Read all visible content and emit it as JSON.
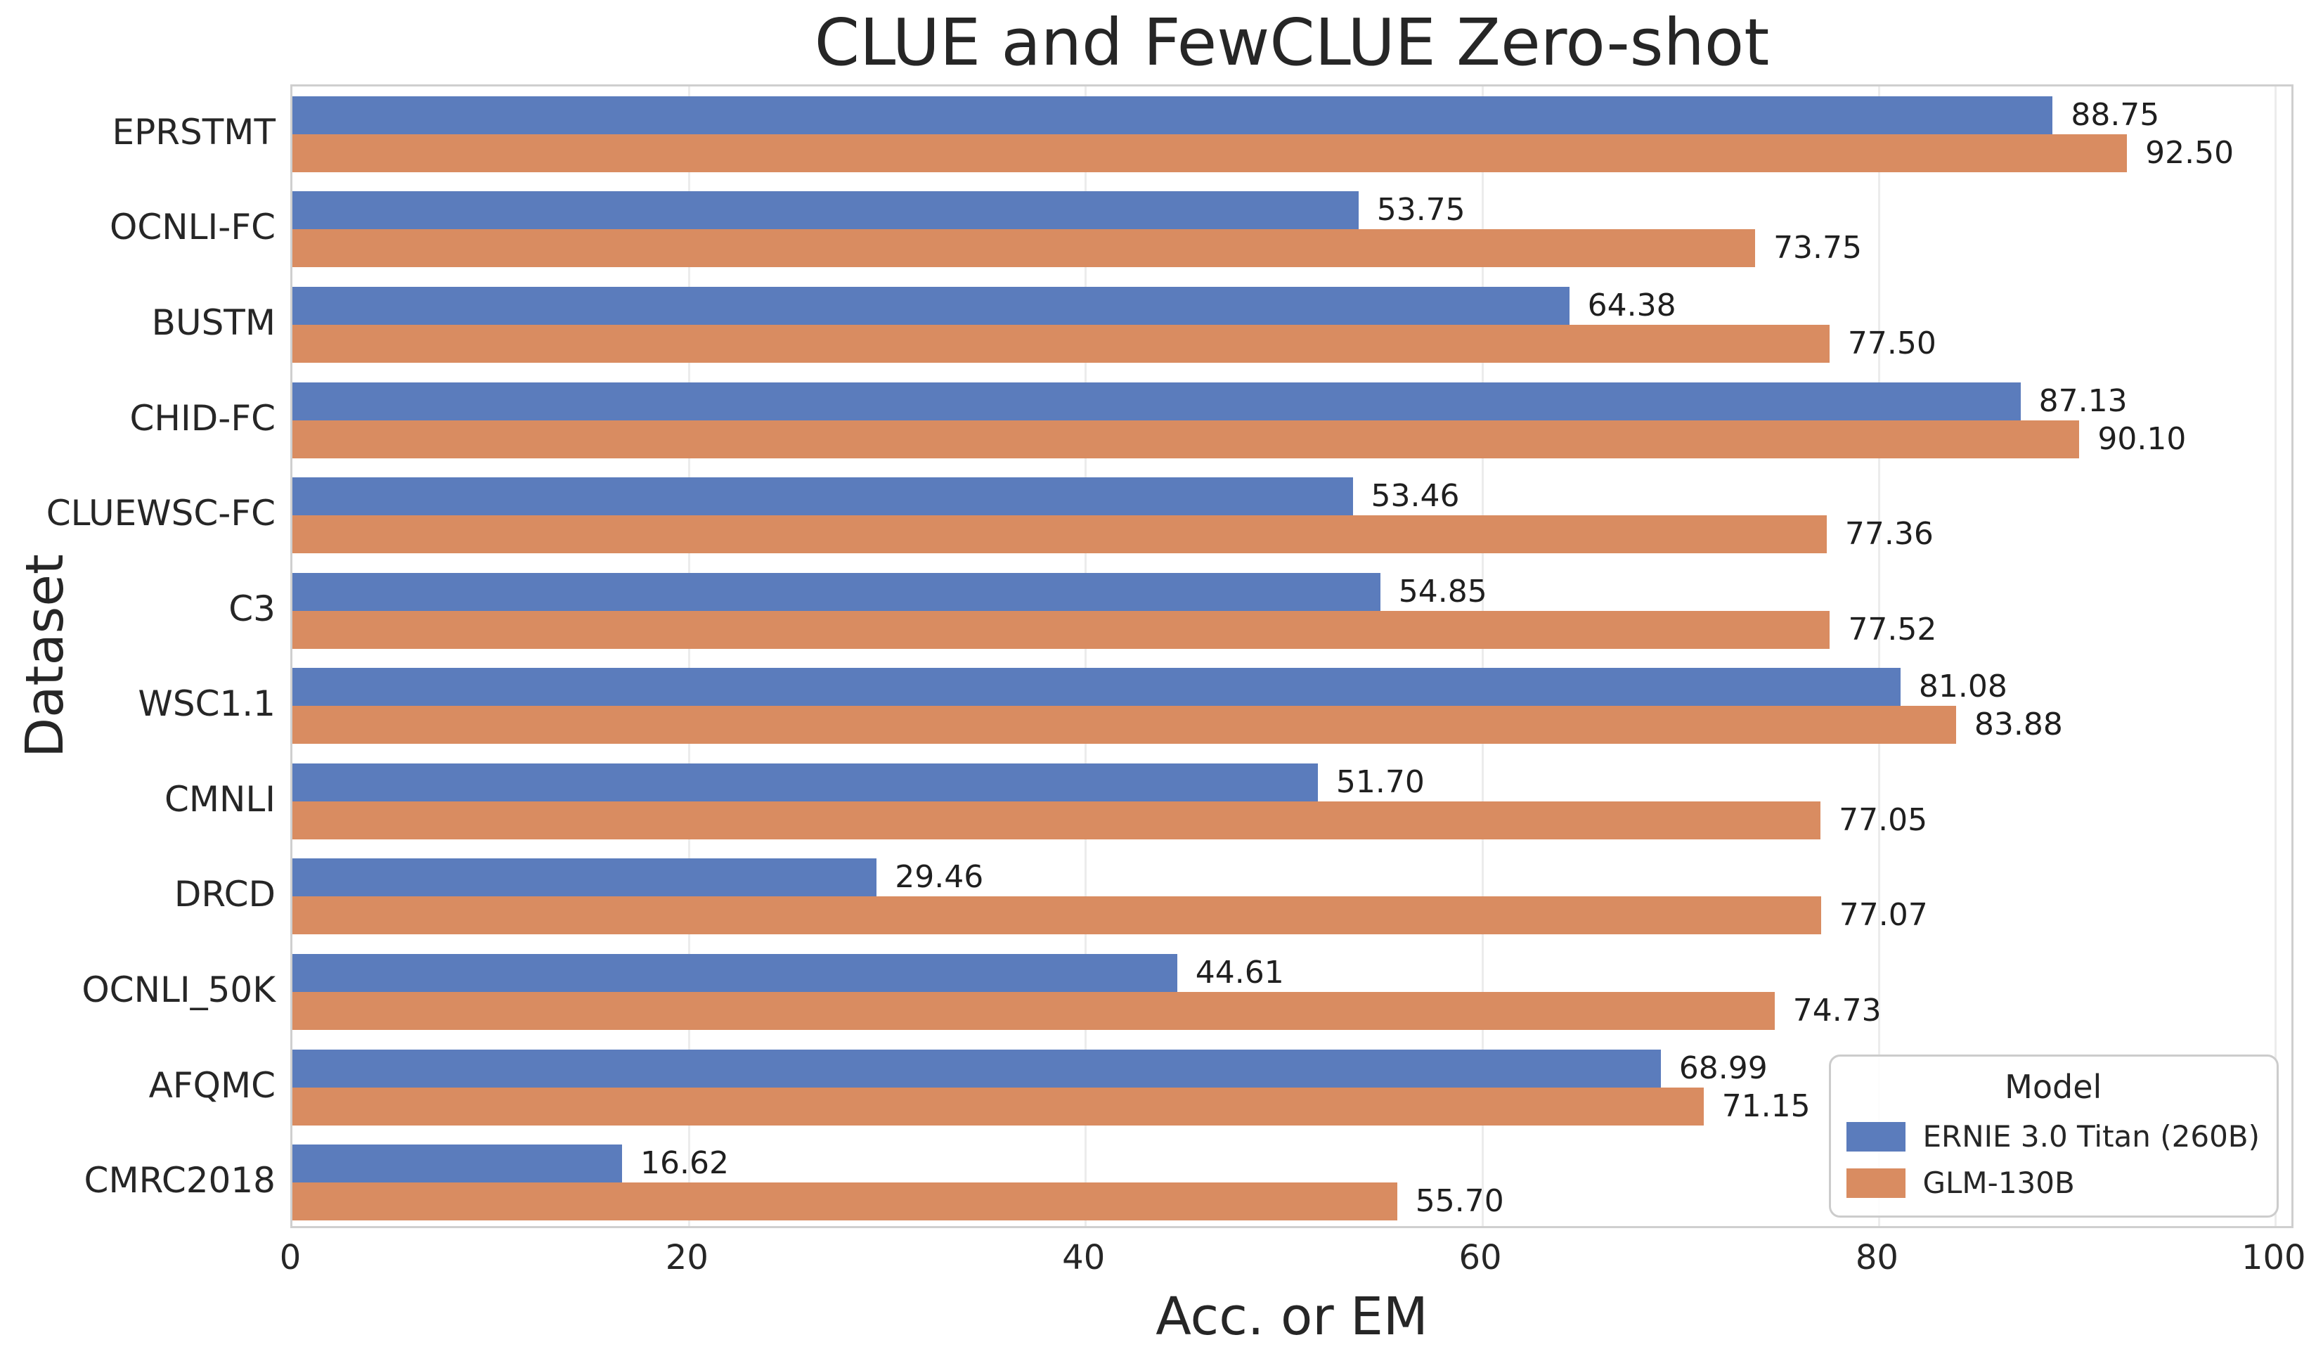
{
  "chart_data": {
    "type": "bar",
    "orientation": "horizontal",
    "title": "CLUE and FewCLUE Zero-shot",
    "xlabel": "Acc. or EM",
    "ylabel": "Dataset",
    "xlim": [
      0,
      101
    ],
    "xticks": [
      0,
      20,
      40,
      60,
      80,
      100
    ],
    "grid": "vertical-gridlines-on",
    "value_labels": "two-decimals-right-of-bar",
    "categories": [
      "EPRSTMT",
      "OCNLI-FC",
      "BUSTM",
      "CHID-FC",
      "CLUEWSC-FC",
      "C3",
      "WSC1.1",
      "CMNLI",
      "DRCD",
      "OCNLI_50K",
      "AFQMC",
      "CMRC2018"
    ],
    "series": [
      {
        "name": "ERNIE 3.0 Titan (260B)",
        "color": "#5b7cbc",
        "values": [
          88.75,
          53.75,
          64.38,
          87.13,
          53.46,
          54.85,
          81.08,
          51.7,
          29.46,
          44.61,
          68.99,
          16.62
        ]
      },
      {
        "name": "GLM-130B",
        "color": "#d98c61",
        "values": [
          92.5,
          73.75,
          77.5,
          90.1,
          77.36,
          77.52,
          83.88,
          77.05,
          77.07,
          74.73,
          71.15,
          55.7
        ]
      }
    ],
    "legend": {
      "title": "Model",
      "position": "lower right"
    },
    "colors": {
      "spine": "#cfcfcf",
      "gridline": "#ececec",
      "text": "#262626"
    }
  }
}
